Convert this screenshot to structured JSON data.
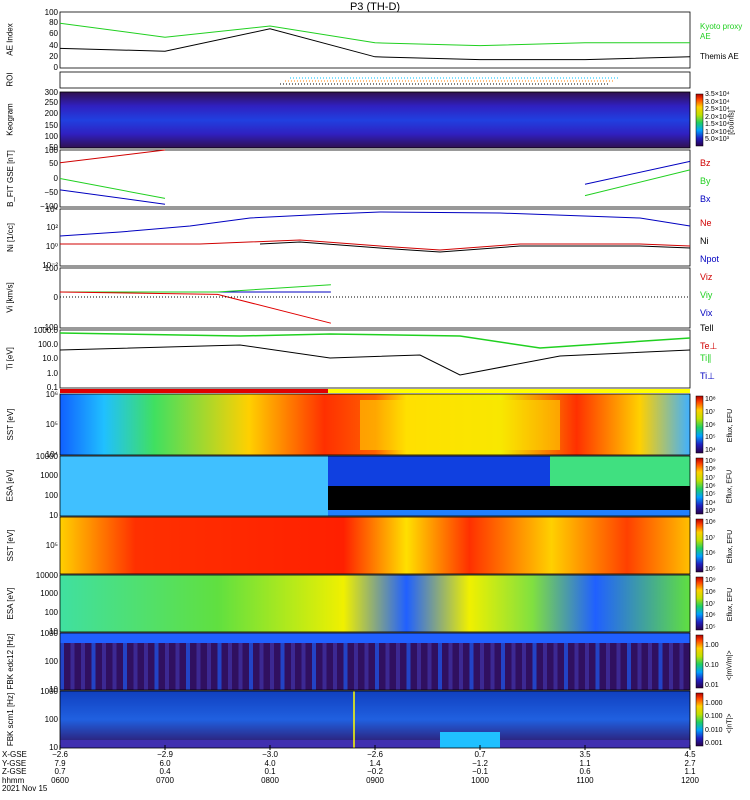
{
  "title": "P3 (TH-D)",
  "panels": [
    {
      "key": "ae",
      "ylabel": "AE Index",
      "ticks": [
        "100",
        "80",
        "60",
        "40",
        "20",
        "0"
      ]
    },
    {
      "key": "roi",
      "ylabel": "ROI",
      "ticks": []
    },
    {
      "key": "keogram",
      "ylabel": "Keogram",
      "ticks": [
        "300",
        "250",
        "200",
        "150",
        "100",
        "50"
      ],
      "legend_unit": "[counts]",
      "legend_ticks": [
        "3.5×10⁴",
        "3.0×10⁴",
        "2.5×10⁴",
        "2.0×10⁴",
        "1.5×10⁴",
        "1.0×10⁴",
        "5.0×10³"
      ]
    },
    {
      "key": "bfit",
      "ylabel": "B_FIT GSE [nT]",
      "ticks": [
        "100",
        "50",
        "0",
        "−50",
        "−100"
      ]
    },
    {
      "key": "ni",
      "ylabel": "Ni [1/cc]",
      "ticks": [
        "10⁴",
        "10²",
        "10⁰",
        "10⁻²"
      ]
    },
    {
      "key": "vi",
      "ylabel": "Vi [km/s]",
      "ticks": [
        "100",
        "0",
        "−100"
      ]
    },
    {
      "key": "ti",
      "ylabel": "Ti [eV]",
      "ticks": [
        "1000.0",
        "100.0",
        "10.0",
        "1.0",
        "0.1"
      ]
    },
    {
      "key": "sst_e",
      "ylabel": "SST [eV]",
      "ticks": [
        "10⁶",
        "10⁵",
        "10⁴"
      ],
      "legend_label": "Eflux, EFU"
    },
    {
      "key": "esa_e",
      "ylabel": "ESA [eV]",
      "ticks": [
        "10000",
        "1000",
        "100",
        "10"
      ],
      "legend_label": "Eflux, EFU"
    },
    {
      "key": "sst_i",
      "ylabel": "SST [eV]",
      "ticks": [
        "10⁵"
      ],
      "legend_label": "Eflux, EFU"
    },
    {
      "key": "esa_i",
      "ylabel": "ESA [eV]",
      "ticks": [
        "10000",
        "1000",
        "100",
        "10"
      ],
      "legend_label": "Eflux, EFU"
    },
    {
      "key": "fbk1",
      "ylabel": "FBK edc12 [Hz]",
      "ticks": [
        "1000",
        "100",
        "10"
      ],
      "legend_label": "<|mV/m|>",
      "legend_ticks": [
        "1.00",
        "0.10",
        "0.01"
      ]
    },
    {
      "key": "fbk2",
      "ylabel": "FBK scm1 [Hz]",
      "ticks": [
        "1000",
        "100",
        "10"
      ],
      "legend_label": "<|nT|>",
      "legend_ticks": [
        "1.000",
        "0.100",
        "0.010",
        "0.001"
      ]
    }
  ],
  "ae_legend": {
    "kyoto": "Kyoto proxy AE",
    "themis": "Themis AE"
  },
  "bfit_legend": [
    "Bz",
    "By",
    "Bx"
  ],
  "ni_legend": [
    "Ne",
    "Ni",
    "Npot"
  ],
  "vi_legend": [
    "Viz",
    "Viy",
    "Vix"
  ],
  "ti_legend": [
    "Tell",
    "Te⊥",
    "Ti∥",
    "Ti⊥"
  ],
  "spectro_legend_ticks_e": [
    "10⁸",
    "10⁷",
    "10⁶",
    "10⁵",
    "10⁴"
  ],
  "spectro_legend_ticks_esa": [
    "10⁹",
    "10⁸",
    "10⁷",
    "10⁶",
    "10⁵",
    "10⁴",
    "10³"
  ],
  "bottom_axis": {
    "row_labels": [
      "X-GSE",
      "Y-GSE",
      "Z-GSE",
      "hhmm",
      "2021 Nov 15"
    ],
    "columns": [
      [
        "−2.6",
        "7.9",
        "0.7",
        "0600"
      ],
      [
        "−2.9",
        "6.0",
        "0.4",
        "0700"
      ],
      [
        "−3.0",
        "4.0",
        "0.1",
        "0800"
      ],
      [
        "−2.6",
        "1.4",
        "−0.2",
        "0900"
      ],
      [
        "0.7",
        "−1.2",
        "−0.1",
        "1000"
      ],
      [
        "3.5",
        "1.1",
        "0.6",
        "1100"
      ],
      [
        "4.5",
        "2.7",
        "1.1",
        "1200"
      ]
    ]
  },
  "chart_data": [
    {
      "type": "line",
      "title": "P3 (TH-D)",
      "ylabel": "AE Index",
      "ylim": [
        0,
        100
      ],
      "x": [
        "0600",
        "0700",
        "0800",
        "0900",
        "1000",
        "1100",
        "1200"
      ],
      "series": [
        {
          "name": "Kyoto proxy AE",
          "values": [
            80,
            55,
            75,
            45,
            40,
            45,
            45
          ]
        },
        {
          "name": "Themis AE",
          "values": [
            35,
            30,
            70,
            20,
            15,
            15,
            20
          ]
        }
      ]
    },
    {
      "type": "line",
      "ylabel": "B_FIT GSE [nT]",
      "ylim": [
        -100,
        100
      ],
      "series": [
        {
          "name": "Bz",
          "values": [
            55,
            100,
            null,
            null,
            null,
            null,
            null
          ]
        },
        {
          "name": "By",
          "values": [
            0,
            -70,
            null,
            null,
            null,
            -60,
            30
          ]
        },
        {
          "name": "Bx",
          "values": [
            -40,
            -90,
            null,
            null,
            null,
            -20,
            60
          ]
        }
      ]
    },
    {
      "type": "line",
      "ylabel": "Vi [km/s]",
      "ylim": [
        -150,
        100
      ],
      "series": [
        {
          "name": "Vix",
          "values": [
            0,
            0,
            0,
            null,
            null,
            null,
            null
          ]
        },
        {
          "name": "Viy",
          "values": [
            0,
            0,
            30,
            null,
            null,
            null,
            null
          ]
        },
        {
          "name": "Viz",
          "values": [
            0,
            -10,
            -130,
            null,
            null,
            null,
            null
          ]
        }
      ]
    },
    {
      "type": "heatmap",
      "ylabel": "SST [eV]",
      "note": "electron energy flux spectrogram"
    },
    {
      "type": "heatmap",
      "ylabel": "ESA [eV]",
      "note": "electron energy flux spectrogram"
    },
    {
      "type": "heatmap",
      "ylabel": "SST [eV]",
      "note": "ion energy flux spectrogram"
    },
    {
      "type": "heatmap",
      "ylabel": "ESA [eV]",
      "note": "ion energy flux spectrogram"
    },
    {
      "type": "heatmap",
      "ylabel": "FBK edc12 [Hz]"
    },
    {
      "type": "heatmap",
      "ylabel": "FBK scm1 [Hz]"
    }
  ]
}
